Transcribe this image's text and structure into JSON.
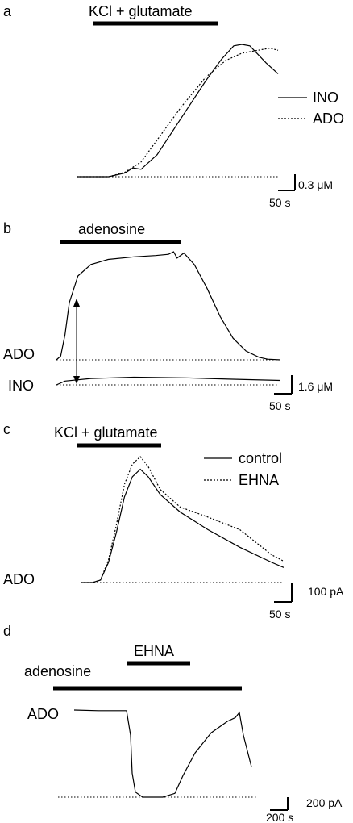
{
  "chart_data": [
    {
      "type": "line",
      "panel": "a",
      "stimulus": "KCl + glutamate",
      "legend": [
        "INO",
        "ADO"
      ],
      "scalebar": {
        "y": "0.3 μM",
        "x": "50 s"
      },
      "series": [
        {
          "name": "INO",
          "style": "solid",
          "points": [
            [
              0,
              0
            ],
            [
              40,
              0
            ],
            [
              60,
              0.05
            ],
            [
              70,
              0.12
            ],
            [
              80,
              0.1
            ],
            [
              100,
              0.3
            ],
            [
              130,
              0.8
            ],
            [
              160,
              1.3
            ],
            [
              180,
              1.6
            ],
            [
              195,
              1.78
            ],
            [
              205,
              1.8
            ],
            [
              215,
              1.78
            ],
            [
              235,
              1.55
            ],
            [
              250,
              1.4
            ]
          ]
        },
        {
          "name": "ADO",
          "style": "dotted",
          "points": [
            [
              0,
              0
            ],
            [
              40,
              0
            ],
            [
              60,
              0.06
            ],
            [
              80,
              0.2
            ],
            [
              100,
              0.5
            ],
            [
              130,
              0.95
            ],
            [
              160,
              1.35
            ],
            [
              185,
              1.58
            ],
            [
              205,
              1.68
            ],
            [
              225,
              1.72
            ],
            [
              240,
              1.75
            ],
            [
              250,
              1.72
            ]
          ]
        }
      ]
    },
    {
      "type": "line",
      "panel": "b",
      "stimulus": "adenosine",
      "trace_labels": [
        "ADO",
        "INO"
      ],
      "scalebar": {
        "y": "1.6 μM",
        "x": "50 s"
      },
      "series": [
        {
          "name": "ADO",
          "style": "solid",
          "points": [
            [
              0,
              0
            ],
            [
              5,
              0.3
            ],
            [
              10,
              2
            ],
            [
              15,
              4.5
            ],
            [
              25,
              6.6
            ],
            [
              40,
              7.5
            ],
            [
              60,
              7.9
            ],
            [
              90,
              8.1
            ],
            [
              115,
              8.2
            ],
            [
              130,
              8.3
            ],
            [
              136,
              8.5
            ],
            [
              140,
              8.0
            ],
            [
              148,
              8.4
            ],
            [
              160,
              7.5
            ],
            [
              175,
              5.6
            ],
            [
              190,
              3.4
            ],
            [
              205,
              1.7
            ],
            [
              220,
              0.7
            ],
            [
              235,
              0.2
            ],
            [
              245,
              0.05
            ],
            [
              260,
              0
            ]
          ]
        },
        {
          "name": "INO",
          "style": "solid",
          "points": [
            [
              0,
              0
            ],
            [
              10,
              0.3
            ],
            [
              40,
              0.5
            ],
            [
              90,
              0.6
            ],
            [
              150,
              0.55
            ],
            [
              200,
              0.45
            ],
            [
              260,
              0.35
            ]
          ]
        }
      ]
    },
    {
      "type": "line",
      "panel": "c",
      "stimulus": "KCl + glutamate",
      "trace_label": "ADO",
      "legend": [
        "control",
        "EHNA"
      ],
      "scalebar": {
        "y": "100 pA",
        "x": "50 s"
      },
      "series": [
        {
          "name": "control",
          "style": "solid",
          "points": [
            [
              0,
              0
            ],
            [
              15,
              0
            ],
            [
              25,
              0.1
            ],
            [
              35,
              0.8
            ],
            [
              45,
              2.0
            ],
            [
              55,
              3.4
            ],
            [
              65,
              4.2
            ],
            [
              75,
              4.5
            ],
            [
              85,
              4.2
            ],
            [
              100,
              3.5
            ],
            [
              125,
              2.8
            ],
            [
              160,
              2.1
            ],
            [
              200,
              1.4
            ],
            [
              240,
              0.8
            ],
            [
              255,
              0.6
            ]
          ]
        },
        {
          "name": "EHNA",
          "style": "dotted",
          "points": [
            [
              0,
              0
            ],
            [
              15,
              0
            ],
            [
              25,
              0.1
            ],
            [
              35,
              0.9
            ],
            [
              45,
              2.3
            ],
            [
              55,
              3.9
            ],
            [
              65,
              4.7
            ],
            [
              75,
              5.0
            ],
            [
              85,
              4.6
            ],
            [
              100,
              3.7
            ],
            [
              125,
              3.0
            ],
            [
              160,
              2.6
            ],
            [
              200,
              2.1
            ],
            [
              240,
              1.1
            ],
            [
              255,
              0.85
            ]
          ]
        }
      ]
    },
    {
      "type": "line",
      "panel": "d",
      "stimulus": "adenosine",
      "stimulus2": "EHNA",
      "trace_label": "ADO",
      "scalebar": {
        "y": "200 pA",
        "x": "200 s"
      },
      "series": [
        {
          "name": "ADO",
          "style": "solid",
          "points": [
            [
              0,
              0
            ],
            [
              30,
              -0.05
            ],
            [
              60,
              -0.05
            ],
            [
              65,
              -0.05
            ],
            [
              70,
              -2
            ],
            [
              72,
              -5
            ],
            [
              76,
              -6.5
            ],
            [
              85,
              -6.9
            ],
            [
              110,
              -6.9
            ],
            [
              125,
              -6.6
            ],
            [
              135,
              -5.2
            ],
            [
              150,
              -3.4
            ],
            [
              170,
              -1.8
            ],
            [
              190,
              -0.9
            ],
            [
              200,
              -0.6
            ],
            [
              205,
              -0.2
            ],
            [
              210,
              -2
            ],
            [
              220,
              -4.5
            ]
          ]
        }
      ]
    }
  ]
}
